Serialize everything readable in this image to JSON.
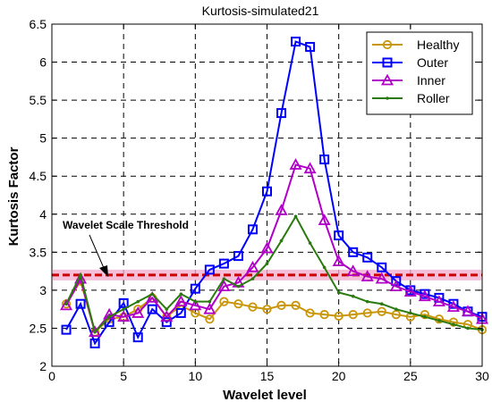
{
  "chart_data": {
    "type": "line",
    "title": "Kurtosis-simulated21",
    "xlabel": "Wavelet level",
    "ylabel": "Kurtosis Factor",
    "xlim": [
      0,
      30
    ],
    "ylim": [
      2,
      6.5
    ],
    "xticks": [
      0,
      5,
      10,
      15,
      20,
      25,
      30
    ],
    "yticks": [
      2,
      2.5,
      3,
      3.5,
      4,
      4.5,
      5,
      5.5,
      6,
      6.5
    ],
    "xtick_labels": [
      "0",
      "5",
      "10",
      "15",
      "20",
      "25",
      "30"
    ],
    "ytick_labels": [
      "2",
      "2.5",
      "3",
      "3.5",
      "4",
      "4.5",
      "5",
      "5.5",
      "6",
      "6.5"
    ],
    "grid": true,
    "legend_position": "top-right",
    "x": [
      1,
      2,
      3,
      4,
      5,
      6,
      7,
      8,
      9,
      10,
      11,
      12,
      13,
      14,
      15,
      16,
      17,
      18,
      19,
      20,
      21,
      22,
      23,
      24,
      25,
      26,
      27,
      28,
      29,
      30
    ],
    "series": [
      {
        "name": "Healthy",
        "color": "#c8960a",
        "marker": "circle",
        "values": [
          2.82,
          3.12,
          2.45,
          2.62,
          2.65,
          2.75,
          2.9,
          2.65,
          2.8,
          2.7,
          2.62,
          2.85,
          2.82,
          2.78,
          2.75,
          2.8,
          2.8,
          2.7,
          2.68,
          2.66,
          2.68,
          2.7,
          2.72,
          2.68,
          2.65,
          2.68,
          2.62,
          2.58,
          2.55,
          2.48
        ]
      },
      {
        "name": "Outer",
        "color": "#0000ff",
        "marker": "square",
        "values": [
          2.48,
          2.82,
          2.3,
          2.58,
          2.83,
          2.38,
          2.75,
          2.58,
          2.7,
          3.02,
          3.27,
          3.35,
          3.45,
          3.8,
          4.3,
          5.33,
          6.27,
          6.2,
          4.72,
          3.72,
          3.5,
          3.43,
          3.3,
          3.12,
          3.0,
          2.95,
          2.9,
          2.82,
          2.72,
          2.65
        ]
      },
      {
        "name": "Inner",
        "color": "#b000c8",
        "marker": "triangle",
        "values": [
          2.8,
          3.15,
          2.45,
          2.68,
          2.65,
          2.7,
          2.9,
          2.65,
          2.85,
          2.8,
          2.75,
          3.05,
          3.1,
          3.3,
          3.55,
          4.05,
          4.65,
          4.6,
          3.92,
          3.38,
          3.25,
          3.18,
          3.15,
          3.05,
          2.98,
          2.92,
          2.85,
          2.78,
          2.72,
          2.62
        ]
      },
      {
        "name": "Roller",
        "color": "#2a7a0e",
        "marker": "dot",
        "values": [
          2.82,
          3.2,
          2.45,
          2.65,
          2.75,
          2.85,
          2.95,
          2.75,
          2.95,
          2.85,
          2.85,
          3.15,
          3.05,
          3.15,
          3.35,
          3.65,
          3.97,
          3.62,
          3.3,
          2.97,
          2.92,
          2.85,
          2.82,
          2.75,
          2.7,
          2.65,
          2.6,
          2.55,
          2.5,
          2.48
        ]
      }
    ],
    "threshold": {
      "label": "Wavelet Scale Threshold",
      "value": 3.2,
      "color": "#cc0000",
      "band_color": "#f2a8cc"
    },
    "annotations": []
  }
}
